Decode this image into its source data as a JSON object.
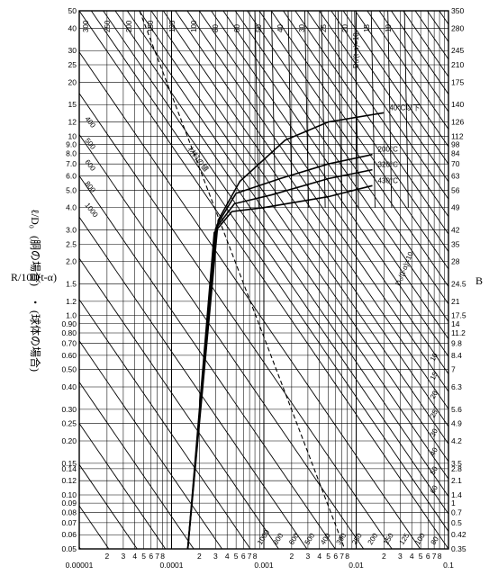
{
  "chart_data": {
    "type": "line",
    "title": "",
    "xscale": "log",
    "yscale": "log",
    "xlim": [
      1e-05,
      0.1
    ],
    "ylim": [
      0.05,
      50
    ],
    "x_tick_labels": [
      "0.00001",
      "0.0001",
      "0.001",
      "0.01",
      "0.1"
    ],
    "x_minor_digits": [
      "2",
      "3",
      "4",
      "5",
      "6",
      "7",
      "8"
    ],
    "y_left_ticks": [
      "50",
      "40",
      "30",
      "25",
      "20",
      "15",
      "12",
      "10",
      "9.0",
      "8.0",
      "7.0",
      "6.0",
      "5.0",
      "4.0",
      "3.0",
      "2.5",
      "2.0",
      "1.5",
      "1.2",
      "1.0",
      "0.90",
      "0.80",
      "0.70",
      "0.60",
      "0.50",
      "0.40",
      "0.30",
      "0.25",
      "0.20",
      "0.15",
      "0.14",
      "0.12",
      "0.10",
      "0.09",
      "0.08",
      "0.07",
      "0.06",
      "0.05"
    ],
    "y_right_ticks": [
      "350",
      "280",
      "245",
      "210",
      "175",
      "140",
      "126",
      "112",
      "98",
      "84",
      "70",
      "63",
      "56",
      "49",
      "42",
      "35",
      "28",
      "24.5",
      "21",
      "17.5",
      "14",
      "11.2",
      "9.8",
      "8.4",
      "7",
      "6.3",
      "5.6",
      "4.9",
      "4.2",
      "3.5",
      "2.8",
      "2.1",
      "1.4",
      "1",
      "0.7",
      "0.5",
      "0.42",
      "0.35"
    ],
    "ylabel_left_1": "ℓ/D₀",
    "ylabel_left_2": "(胴の場合)",
    "ylabel_left_3": "R/100(t-α)",
    "ylabel_left_4": "(球体の場合)",
    "ylabel_left_dot": "・",
    "ylabel_right": "B",
    "ratio_label_top": "D₀/(t-α)=10",
    "ratio_label_mid": "D₀/(t-α)=10",
    "allowable_label": "材料の値",
    "temperature_curves": [
      {
        "name": "40°C以下",
        "points": [
          [
            0.00015,
            0.05
          ],
          [
            0.00032,
            3.4
          ],
          [
            0.00055,
            5.6
          ],
          [
            0.0017,
            9.5
          ],
          [
            0.005,
            12.0
          ],
          [
            0.02,
            13.5
          ]
        ]
      },
      {
        "name": "200°C",
        "points": [
          [
            0.00015,
            0.05
          ],
          [
            0.00031,
            3.2
          ],
          [
            0.0005,
            4.8
          ],
          [
            0.0015,
            5.8
          ],
          [
            0.005,
            7.0
          ],
          [
            0.015,
            7.9
          ]
        ]
      },
      {
        "name": "320°C",
        "points": [
          [
            0.00015,
            0.05
          ],
          [
            0.0003,
            3.05
          ],
          [
            0.00048,
            4.2
          ],
          [
            0.0012,
            4.7
          ],
          [
            0.005,
            5.8
          ],
          [
            0.015,
            6.5
          ]
        ]
      },
      {
        "name": "430°C",
        "points": [
          [
            0.00015,
            0.05
          ],
          [
            0.00029,
            2.9
          ],
          [
            0.00045,
            3.8
          ],
          [
            0.001,
            4.0
          ],
          [
            0.005,
            4.6
          ],
          [
            0.015,
            5.3
          ]
        ]
      }
    ],
    "ratio_values": [
      "10",
      "15",
      "20",
      "25",
      "30",
      "40",
      "50",
      "60",
      "80",
      "100",
      "125",
      "150",
      "200",
      "250",
      "300",
      "400",
      "500",
      "600",
      "800",
      "1000"
    ],
    "top_edge_labels": [
      "300",
      "250",
      "200",
      "150",
      "125",
      "100",
      "80",
      "60",
      "50",
      "40",
      "30",
      "25",
      "20",
      "15",
      "10"
    ],
    "left_edge_labels": [
      "400",
      "500",
      "600",
      "800",
      "1000"
    ],
    "bottom_edge_labels": [
      "1000",
      "800",
      "600",
      "500",
      "400",
      "300",
      "250",
      "200",
      "150",
      "125",
      "100",
      "80"
    ],
    "right_edge_labels": [
      "10",
      "15",
      "20",
      "25",
      "30",
      "40",
      "50",
      "60"
    ],
    "grid": true,
    "legend": "none"
  }
}
